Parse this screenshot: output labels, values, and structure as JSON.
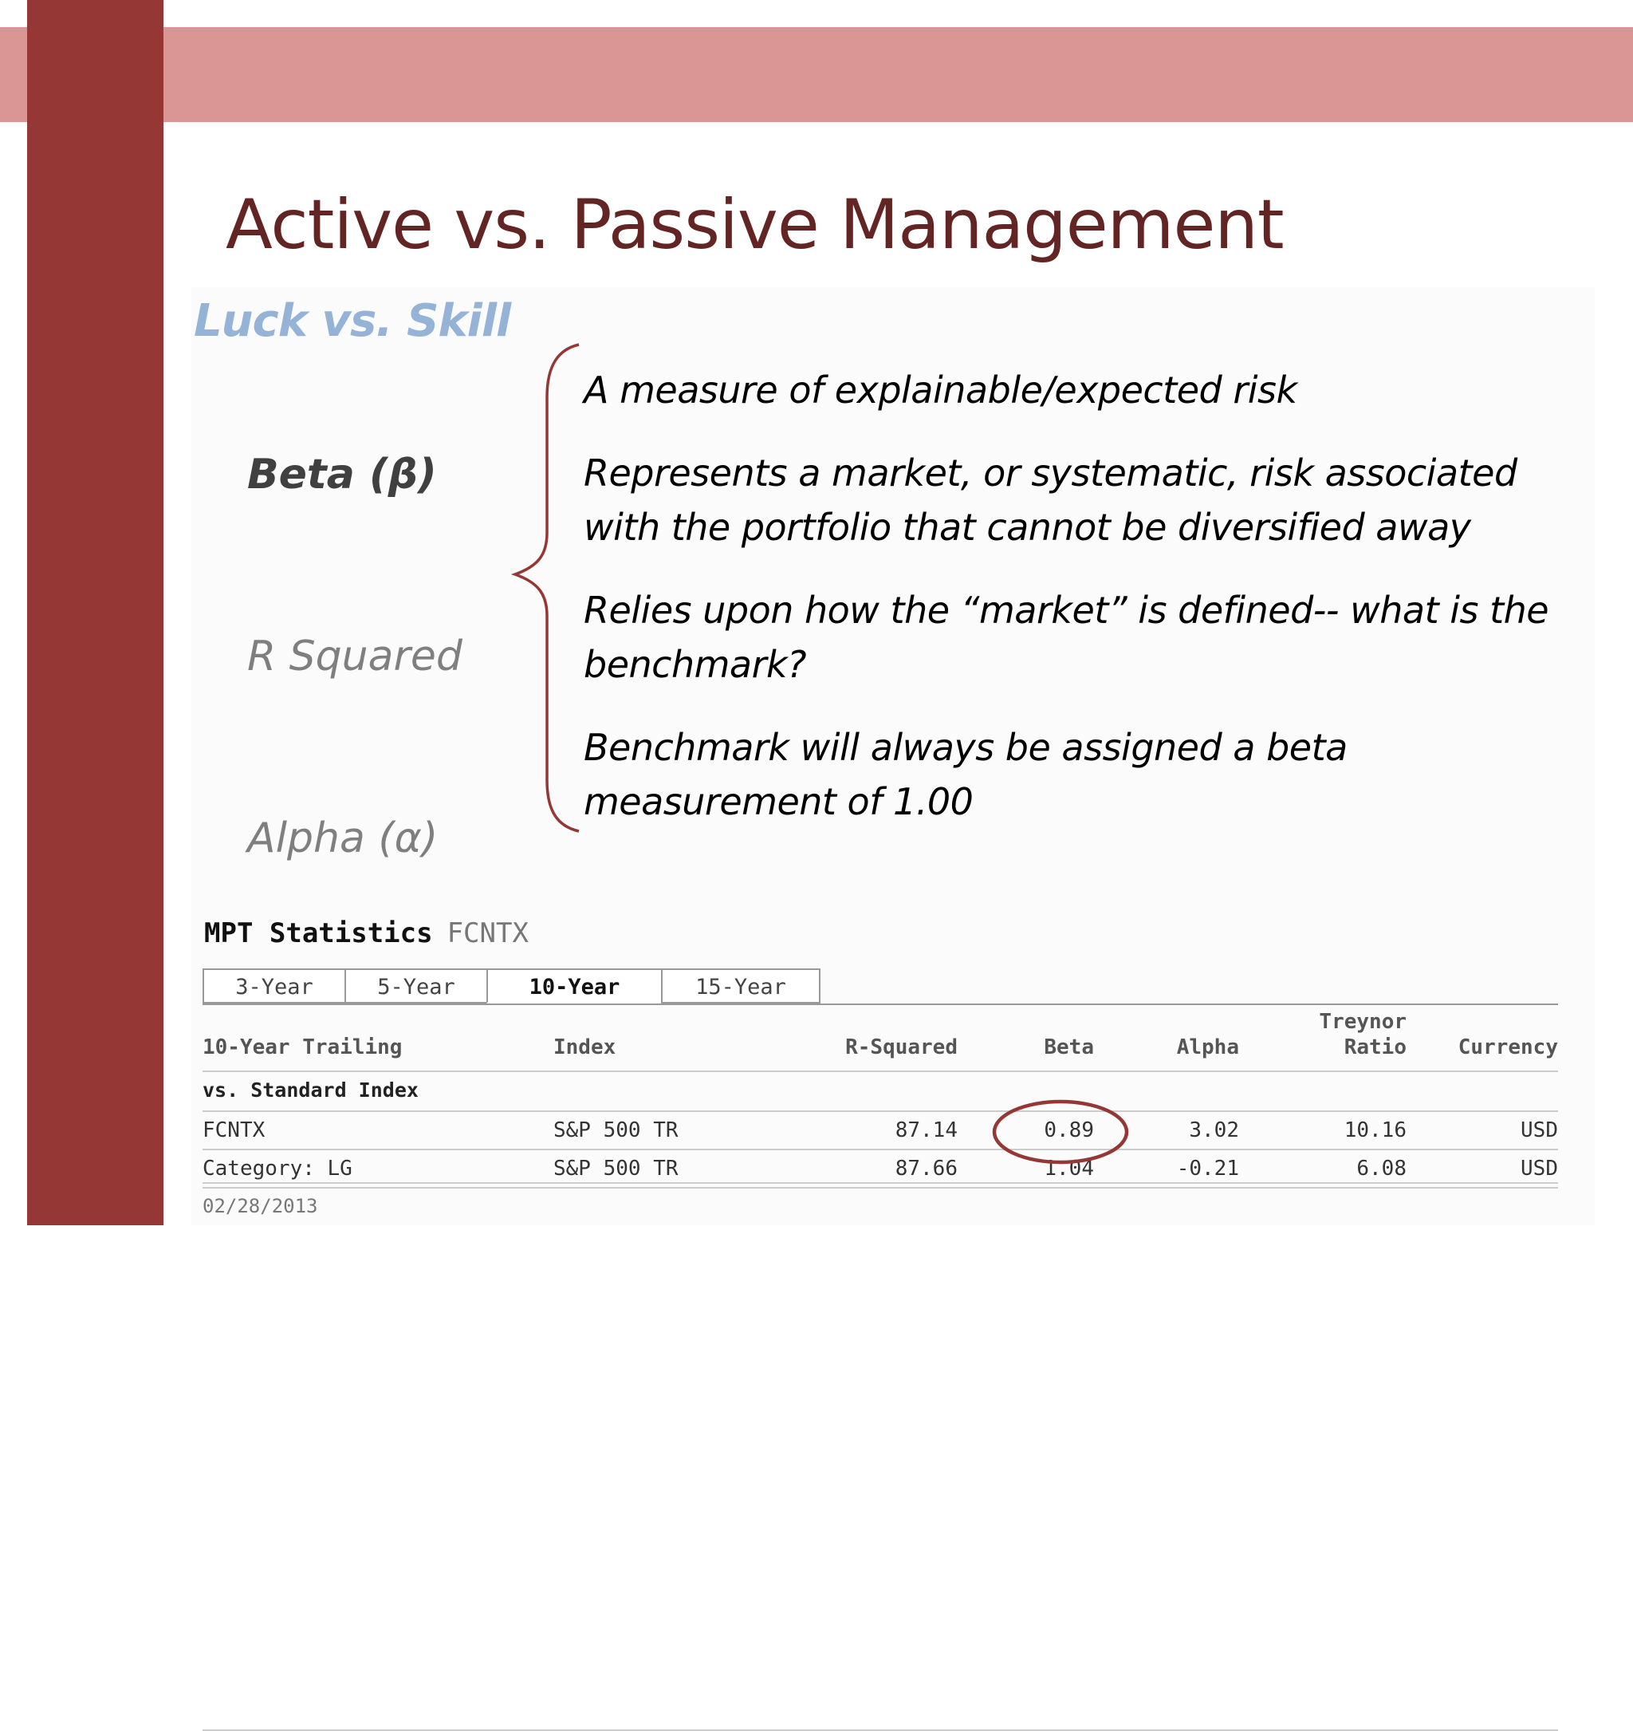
{
  "slide": {
    "title": "Active vs. Passive Management",
    "subtitle": "Luck vs. Skill"
  },
  "terms": {
    "beta": "Beta (β)",
    "r_squared": "R Squared",
    "alpha": "Alpha (α)"
  },
  "bullets": [
    "A measure of explainable/expected risk",
    "Represents a market, or systematic, risk associated with the portfolio that cannot be diversified away",
    "Relies upon how the “market” is defined-- what is the benchmark?",
    "Benchmark will always be assigned a beta measurement of 1.00"
  ],
  "mpt": {
    "label": "MPT Statistics",
    "ticker": "FCNTX",
    "tabs": [
      "3-Year",
      "5-Year",
      "10-Year",
      "15-Year"
    ],
    "active_tab": "10-Year",
    "headers": {
      "trailing": "10-Year Trailing",
      "index": "Index",
      "r_squared": "R-Squared",
      "beta": "Beta",
      "alpha": "Alpha",
      "treynor_1": "Treynor",
      "treynor_2": "Ratio",
      "currency": "Currency"
    },
    "section_label": "vs. Standard Index",
    "rows": [
      {
        "name": "FCNTX",
        "index": "S&P 500 TR",
        "r_squared": "87.14",
        "beta": "0.89",
        "alpha": "3.02",
        "treynor": "10.16",
        "currency": "USD"
      },
      {
        "name": "Category: LG",
        "index": "S&P 500 TR",
        "r_squared": "87.66",
        "beta": "1.04",
        "alpha": "-0.21",
        "treynor": "6.08",
        "currency": "USD"
      }
    ],
    "date": "02/28/2013"
  },
  "colors": {
    "band": "#da9694",
    "sidebar": "#953735",
    "title": "#632523",
    "subtitle": "#95b3d7",
    "highlight_circle": "#953735"
  }
}
